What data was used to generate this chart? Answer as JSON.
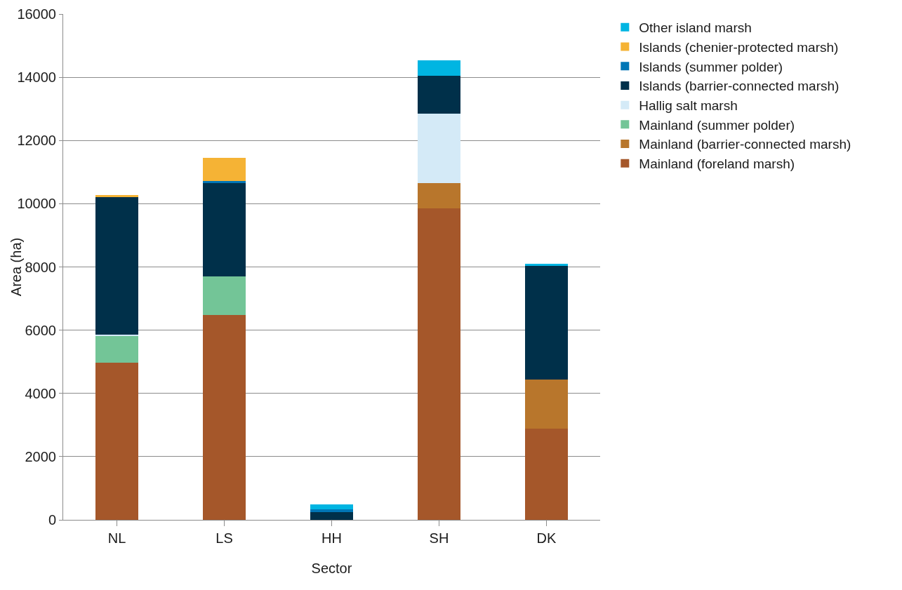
{
  "chart_data": {
    "type": "bar",
    "stacked": true,
    "xlabel": "Sector",
    "ylabel": "Area (ha)",
    "categories": [
      "NL",
      "LS",
      "HH",
      "SH",
      "DK"
    ],
    "series": [
      {
        "name": "Mainland (foreland marsh)",
        "color": "#a5572a",
        "values": [
          4980,
          6485,
          0,
          9845,
          2875
        ]
      },
      {
        "name": "Mainland (barrier-connected marsh)",
        "color": "#b8762c",
        "values": [
          0,
          0,
          0,
          805,
          1570
        ]
      },
      {
        "name": "Mainland (summer polder)",
        "color": "#73c597",
        "values": [
          850,
          1205,
          0,
          0,
          0
        ]
      },
      {
        "name": "Hallig salt marsh",
        "color": "#d4eaf7",
        "values": [
          30,
          0,
          0,
          2195,
          0
        ]
      },
      {
        "name": "Islands (barrier-connected marsh)",
        "color": "#00304a",
        "values": [
          4350,
          2955,
          250,
          1205,
          3585
        ]
      },
      {
        "name": "Islands (summer polder)",
        "color": "#0076b6",
        "values": [
          0,
          65,
          90,
          0,
          0
        ]
      },
      {
        "name": "Islands (chenier-protected marsh)",
        "color": "#f5b335",
        "values": [
          70,
          730,
          0,
          0,
          0
        ]
      },
      {
        "name": "Other island marsh",
        "color": "#00b5e2",
        "values": [
          0,
          0,
          150,
          475,
          60
        ]
      }
    ],
    "ylim": [
      0,
      16000
    ],
    "yticks": [
      0,
      2000,
      4000,
      6000,
      8000,
      10000,
      12000,
      14000,
      16000
    ],
    "grid": "y",
    "legend": "right"
  }
}
